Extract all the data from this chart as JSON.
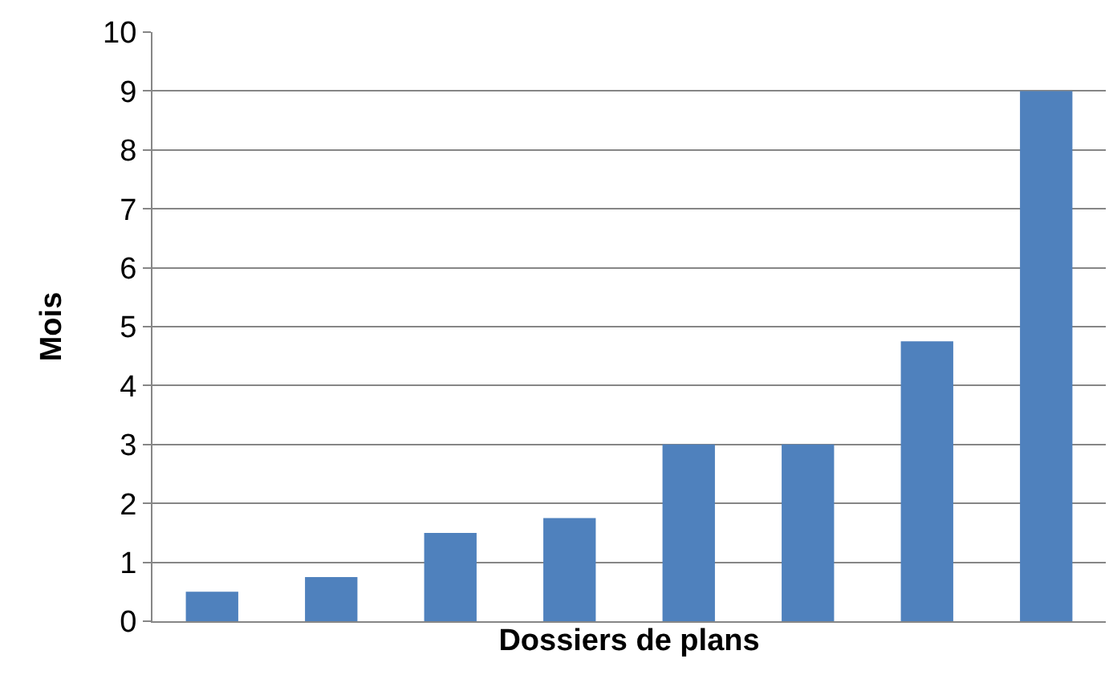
{
  "chart_data": {
    "type": "bar",
    "xlabel": "Dossiers de plans",
    "ylabel": "Mois",
    "categories": [
      null,
      null,
      null,
      null,
      null,
      null,
      null,
      null
    ],
    "values": [
      0.5,
      0.75,
      1.5,
      1.75,
      3,
      3,
      4.75,
      9
    ],
    "color": "#4f81bd",
    "ylim": [
      0,
      10
    ],
    "yticks": [
      0,
      1,
      2,
      3,
      4,
      5,
      6,
      7,
      8,
      9,
      10
    ],
    "grid": "y",
    "tick_labels": "y"
  }
}
